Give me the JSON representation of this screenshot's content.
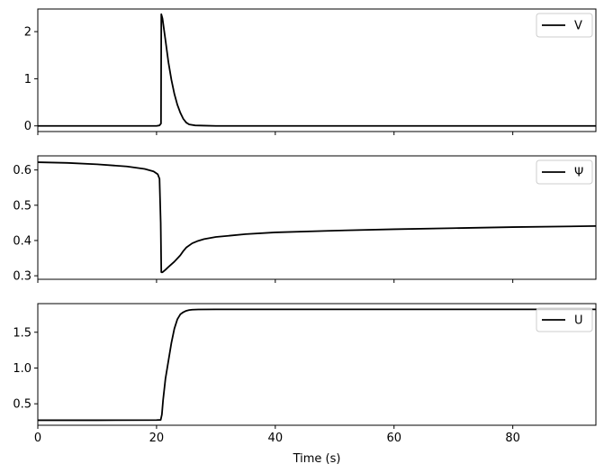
{
  "chart_data": [
    {
      "type": "line",
      "xlim": [
        0,
        94
      ],
      "ylim": [
        -0.12,
        2.48
      ],
      "yticks": [
        0,
        1,
        2
      ],
      "xticks": [
        0,
        20,
        40,
        60,
        80
      ],
      "show_x_ticklabels": false,
      "xlabel": "",
      "ylabel": "",
      "legend_position": "top-right",
      "series": [
        {
          "name": "V",
          "color": "#000000",
          "x": [
            0,
            10,
            20,
            20.5,
            20.75,
            20.8,
            21.0,
            21.5,
            22.0,
            22.5,
            23.0,
            23.5,
            24.0,
            24.5,
            25.0,
            25.5,
            26.5,
            28.0,
            30.0,
            40.0,
            60.0,
            80.0,
            94.0
          ],
          "y": [
            0.0,
            0.0,
            0.0,
            0.01,
            0.05,
            2.37,
            2.28,
            1.82,
            1.35,
            0.98,
            0.68,
            0.45,
            0.28,
            0.15,
            0.07,
            0.03,
            0.01,
            0.005,
            0.0,
            0.0,
            0.0,
            0.0,
            0.0
          ]
        }
      ]
    },
    {
      "type": "line",
      "xlim": [
        0,
        94
      ],
      "ylim": [
        0.29,
        0.64
      ],
      "yticks": [
        0.3,
        0.4,
        0.5,
        0.6
      ],
      "ytick_labels": [
        "0.3",
        "0.4",
        "0.5",
        "0.6"
      ],
      "xticks": [
        0,
        20,
        40,
        60,
        80
      ],
      "show_x_ticklabels": false,
      "xlabel": "",
      "ylabel": "",
      "legend_position": "top-right",
      "series": [
        {
          "name": "Ψ",
          "color": "#000000",
          "x": [
            0,
            5,
            10,
            15,
            18,
            19.5,
            20.2,
            20.5,
            20.7,
            20.8,
            21.0,
            21.5,
            22.0,
            23.0,
            24.0,
            24.5,
            25.0,
            26.0,
            27.0,
            28.0,
            30.0,
            35.0,
            40.0,
            50.0,
            60.0,
            70.0,
            80.0,
            94.0
          ],
          "y": [
            0.622,
            0.62,
            0.616,
            0.61,
            0.603,
            0.596,
            0.588,
            0.575,
            0.45,
            0.31,
            0.31,
            0.317,
            0.325,
            0.34,
            0.358,
            0.37,
            0.38,
            0.392,
            0.399,
            0.404,
            0.41,
            0.418,
            0.423,
            0.428,
            0.432,
            0.435,
            0.438,
            0.441
          ]
        }
      ]
    },
    {
      "type": "line",
      "xlim": [
        0,
        94
      ],
      "ylim": [
        0.2,
        1.9
      ],
      "yticks": [
        0.5,
        1.0,
        1.5
      ],
      "ytick_labels": [
        "0.5",
        "1.0",
        "1.5"
      ],
      "xticks": [
        0,
        20,
        40,
        60,
        80
      ],
      "xtick_labels": [
        "0",
        "20",
        "40",
        "60",
        "80"
      ],
      "show_x_ticklabels": true,
      "xlabel": "Time (s)",
      "ylabel": "",
      "legend_position": "top-right",
      "series": [
        {
          "name": "U",
          "color": "#000000",
          "x": [
            0,
            10,
            20,
            20.7,
            20.9,
            21.1,
            21.5,
            22.0,
            22.5,
            23.0,
            23.5,
            24.0,
            24.5,
            25.0,
            25.5,
            26.0,
            27.0,
            30.0,
            40.0,
            60.0,
            80.0,
            94.0
          ],
          "y": [
            0.27,
            0.27,
            0.272,
            0.275,
            0.35,
            0.55,
            0.85,
            1.1,
            1.35,
            1.55,
            1.68,
            1.75,
            1.78,
            1.8,
            1.81,
            1.815,
            1.818,
            1.82,
            1.82,
            1.82,
            1.82,
            1.82
          ]
        }
      ]
    }
  ]
}
